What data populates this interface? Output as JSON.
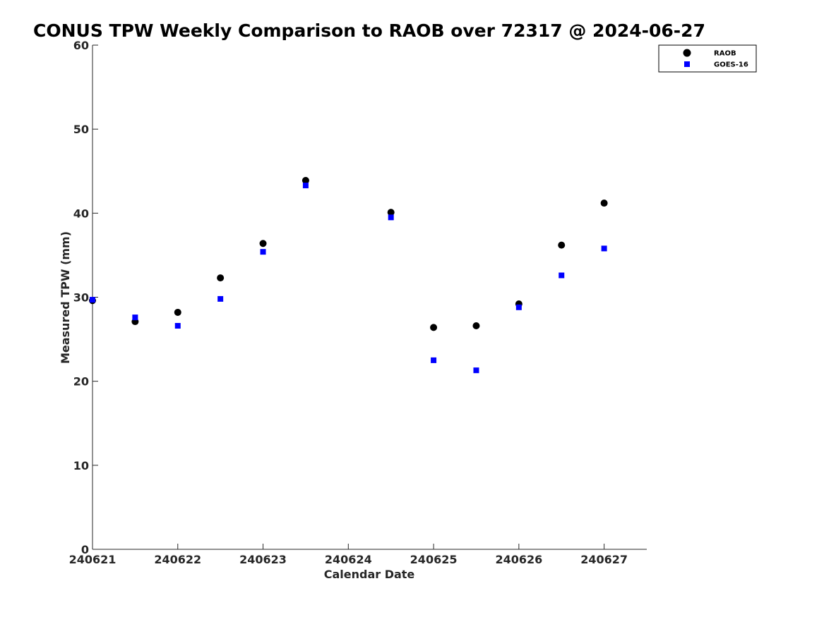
{
  "chart_data": {
    "type": "scatter",
    "title": "CONUS TPW Weekly Comparison to RAOB over 72317 @ 2024-06-27",
    "xlabel": "Calendar Date",
    "ylabel": "Measured TPW (mm)",
    "x_ticks": [
      {
        "value": 240621,
        "label": "240621"
      },
      {
        "value": 240622,
        "label": "240622"
      },
      {
        "value": 240623,
        "label": "240623"
      },
      {
        "value": 240624,
        "label": "240624"
      },
      {
        "value": 240625,
        "label": "240625"
      },
      {
        "value": 240626,
        "label": "240626"
      },
      {
        "value": 240627,
        "label": "240627"
      }
    ],
    "y_ticks": [
      0,
      10,
      20,
      30,
      40,
      50,
      60
    ],
    "xlim": [
      240621,
      240627.5
    ],
    "ylim": [
      0,
      60
    ],
    "grid": false,
    "legend_position": "top-right",
    "series": [
      {
        "name": "RAOB",
        "marker": "circle",
        "color": "#000000",
        "points": [
          {
            "x": 240621.0,
            "y": 29.6
          },
          {
            "x": 240621.5,
            "y": 27.1
          },
          {
            "x": 240622.0,
            "y": 28.2
          },
          {
            "x": 240622.5,
            "y": 32.3
          },
          {
            "x": 240623.0,
            "y": 36.4
          },
          {
            "x": 240623.5,
            "y": 43.9
          },
          {
            "x": 240624.5,
            "y": 40.1
          },
          {
            "x": 240625.0,
            "y": 26.4
          },
          {
            "x": 240625.5,
            "y": 26.6
          },
          {
            "x": 240626.0,
            "y": 29.2
          },
          {
            "x": 240626.5,
            "y": 36.2
          },
          {
            "x": 240627.0,
            "y": 41.2
          }
        ]
      },
      {
        "name": "GOES-16",
        "marker": "square",
        "color": "#0000ff",
        "points": [
          {
            "x": 240621.0,
            "y": 29.7
          },
          {
            "x": 240621.5,
            "y": 27.6
          },
          {
            "x": 240622.0,
            "y": 26.6
          },
          {
            "x": 240622.5,
            "y": 29.8
          },
          {
            "x": 240623.0,
            "y": 35.4
          },
          {
            "x": 240623.5,
            "y": 43.3
          },
          {
            "x": 240624.5,
            "y": 39.5
          },
          {
            "x": 240625.0,
            "y": 22.5
          },
          {
            "x": 240625.5,
            "y": 21.3
          },
          {
            "x": 240626.0,
            "y": 28.8
          },
          {
            "x": 240626.5,
            "y": 32.6
          },
          {
            "x": 240627.0,
            "y": 35.8
          }
        ]
      }
    ]
  }
}
